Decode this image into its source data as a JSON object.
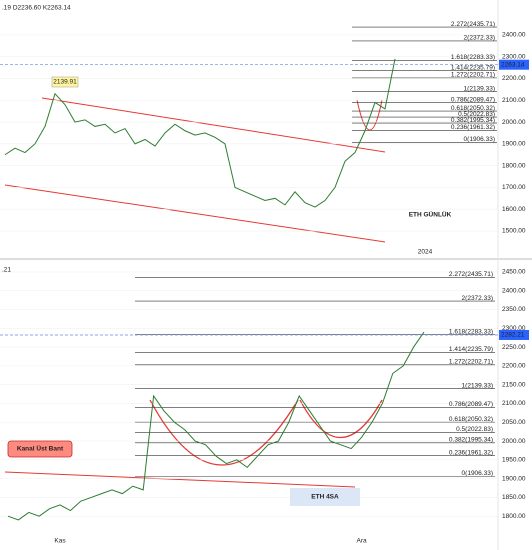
{
  "chart_data": [
    {
      "type": "line",
      "header": ".19 D2236.60 K2263.14",
      "annotation": "ETH GÜNLÜK",
      "callout": "2139.91",
      "categories": [
        null,
        null,
        null,
        null,
        null,
        null,
        null,
        null,
        null,
        null,
        null,
        null,
        null,
        null,
        null,
        null,
        null,
        null,
        null,
        null,
        null,
        null,
        null,
        null,
        null,
        null,
        null,
        null,
        null,
        null,
        null,
        null,
        null,
        null,
        null,
        null,
        null,
        null,
        null,
        null,
        null,
        null,
        "2024"
      ],
      "series": [
        {
          "color": "#2e7d32",
          "values": [
            1850,
            1880,
            1860,
            1900,
            1980,
            2130,
            2080,
            2000,
            2010,
            1980,
            1990,
            1950,
            1970,
            1900,
            1920,
            1890,
            1950,
            1990,
            1960,
            1940,
            1950,
            1930,
            1900,
            1700,
            1680,
            1660,
            1640,
            1650,
            1620,
            1680,
            1630,
            1610,
            1640,
            1700,
            1820,
            1860,
            1960,
            2090,
            2060,
            2290,
            null,
            null,
            null
          ]
        }
      ],
      "fib_levels": [
        {
          "label": "2.272(2435.71)",
          "value": 2435.71
        },
        {
          "label": "2(2372.33)",
          "value": 2372.33
        },
        {
          "label": "1.618(2283.33)",
          "value": 2283.33
        },
        {
          "label": "1.414(2235.79)",
          "value": 2235.79
        },
        {
          "label": "1.272(2202.71)",
          "value": 2202.71
        },
        {
          "label": "1(2139.33)",
          "value": 2139.33
        },
        {
          "label": "0.786(2089.47)",
          "value": 2089.47
        },
        {
          "label": "0.618(2050.32)",
          "value": 2050.32
        },
        {
          "label": "0.5(2022.83)",
          "value": 2022.83
        },
        {
          "label": "0.382(1995.34)",
          "value": 1995.34
        },
        {
          "label": "0.236(1961.32)",
          "value": 1961.32
        },
        {
          "label": "0(1906.33)",
          "value": 1906.33
        }
      ],
      "price_tag": {
        "value": 2263.14,
        "label": "2263.14"
      },
      "ylim": [
        1390,
        2560
      ],
      "yticks": [
        {
          "value": 1500,
          "label": "1500.00"
        },
        {
          "value": 1600,
          "label": "1600.00"
        },
        {
          "value": 1700,
          "label": "1700.00"
        },
        {
          "value": 1800,
          "label": "1800.00"
        },
        {
          "value": 1900,
          "label": "1900.00"
        },
        {
          "value": 2000,
          "label": "2000.00"
        },
        {
          "value": 2100,
          "label": "2100.00"
        },
        {
          "value": 2200,
          "label": "2200.00"
        },
        {
          "value": 2300,
          "label": "2300.00"
        },
        {
          "value": 2400,
          "label": "2400.00"
        }
      ],
      "grid": true
    },
    {
      "type": "line",
      "header": ".21",
      "annotation": "ETH 4SA",
      "callout": "Kanal Üst Bant",
      "categories": [
        null,
        null,
        null,
        null,
        null,
        "Kas",
        null,
        null,
        null,
        null,
        null,
        null,
        null,
        null,
        null,
        null,
        null,
        null,
        null,
        null,
        null,
        null,
        null,
        null,
        null,
        null,
        null,
        null,
        null,
        null,
        null,
        null,
        null,
        null,
        "Ara",
        null,
        null,
        null,
        null,
        null,
        null
      ],
      "series": [
        {
          "color": "#2e7d32",
          "values": [
            1800,
            1790,
            1810,
            1800,
            1820,
            1830,
            1815,
            1840,
            1850,
            1860,
            1870,
            1860,
            1880,
            1870,
            2120,
            2080,
            2050,
            2030,
            2000,
            1990,
            1960,
            1940,
            1950,
            1930,
            1960,
            1990,
            2000,
            2050,
            2120,
            2080,
            2040,
            2000,
            1990,
            1980,
            2010,
            2050,
            2100,
            2180,
            2200,
            2250,
            2290
          ]
        }
      ],
      "fib_levels": [
        {
          "label": "2.272(2435.71)",
          "value": 2435.71
        },
        {
          "label": "2(2372.33)",
          "value": 2372.33
        },
        {
          "label": "1.618(2283.33)",
          "value": 2283.33
        },
        {
          "label": "1.414(2235.79)",
          "value": 2235.79
        },
        {
          "label": "1.272(2202.71)",
          "value": 2202.71
        },
        {
          "label": "1(2139.33)",
          "value": 2139.33
        },
        {
          "label": "0.786(2089.47)",
          "value": 2089.47
        },
        {
          "label": "0.618(2050.32)",
          "value": 2050.32
        },
        {
          "label": "0.5(2022.83)",
          "value": 2022.83
        },
        {
          "label": "0.382(1995.34)",
          "value": 1995.34
        },
        {
          "label": "0.236(1961.32)",
          "value": 1961.32
        },
        {
          "label": "0(1906.33)",
          "value": 1906.33
        }
      ],
      "price_tag": {
        "value": 2282.21,
        "label": "2282.21"
      },
      "ylim": [
        1750,
        2487
      ],
      "yticks": [
        {
          "value": 1800,
          "label": "1800.00"
        },
        {
          "value": 1850,
          "label": "1850.00"
        },
        {
          "value": 1900,
          "label": "1900.00"
        },
        {
          "value": 1950,
          "label": "1950.00"
        },
        {
          "value": 2000,
          "label": "2000.00"
        },
        {
          "value": 2050,
          "label": "2050.00"
        },
        {
          "value": 2100,
          "label": "2100.00"
        },
        {
          "value": 2150,
          "label": "2150.00"
        },
        {
          "value": 2200,
          "label": "2200.00"
        },
        {
          "value": 2250,
          "label": "2250.00"
        },
        {
          "value": 2300,
          "label": "2300.00"
        },
        {
          "value": 2350,
          "label": "2350.00"
        },
        {
          "value": 2400,
          "label": "2400.00"
        },
        {
          "value": 2450,
          "label": "2450.00"
        }
      ],
      "grid": true
    }
  ]
}
